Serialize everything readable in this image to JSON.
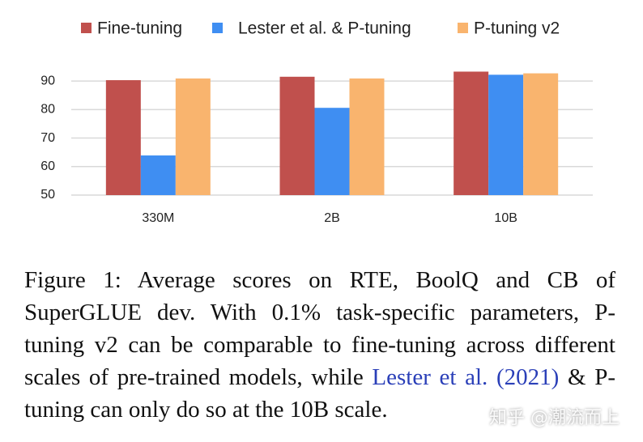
{
  "chart_data": {
    "type": "bar",
    "categories": [
      "330M",
      "2B",
      "10B"
    ],
    "series": [
      {
        "name": "Fine-tuning",
        "color": "#c0504d",
        "values": [
          90.3,
          91.5,
          93.3
        ]
      },
      {
        "name": "Lester et al. & P-tuning",
        "color": "#3f8ef2",
        "values": [
          63.9,
          80.6,
          92.2
        ]
      },
      {
        "name": "P-tuning v2",
        "color": "#f9b46e",
        "values": [
          90.9,
          90.9,
          92.7
        ]
      }
    ],
    "ylim": [
      50,
      94
    ],
    "yticks": [
      50,
      60,
      70,
      80,
      90
    ],
    "grid": true,
    "legend": "top"
  },
  "caption": {
    "before": "Figure 1: Average scores on RTE, BoolQ and CB of SuperGLUE dev. With 0.1% task-specific parameters, P-tuning v2 can be comparable to fine-tuning across different scales of pre-trained models, while ",
    "link": "Lester et al. (2021)",
    "after": " & P-tuning can only do so at the 10B scale."
  },
  "watermark": "知乎 @潮流而上"
}
